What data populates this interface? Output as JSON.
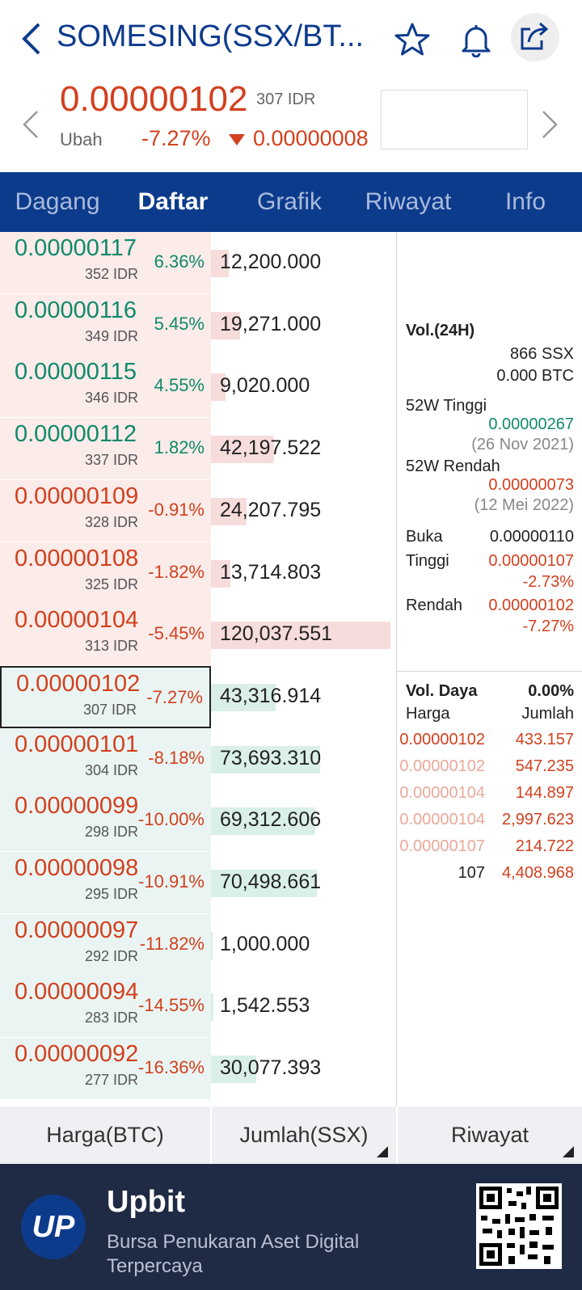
{
  "header": {
    "title": "SOMESING(SSX/BT...",
    "back_icon": "chevron-left-icon",
    "star_icon": "star-icon",
    "bell_icon": "bell-icon",
    "share_icon": "share-icon"
  },
  "price": {
    "value": "0.00000102",
    "idr": "307 IDR",
    "change_label": "Ubah",
    "change_pct": "-7.27%",
    "change_abs": "0.00000008"
  },
  "tabs": [
    {
      "label": "Dagang"
    },
    {
      "label": "Daftar"
    },
    {
      "label": "Grafik"
    },
    {
      "label": "Riwayat"
    },
    {
      "label": "Info"
    }
  ],
  "asks": [
    {
      "price": "0.00000117",
      "idr": "352 IDR",
      "pct": "6.36%",
      "qty": "12,200.000",
      "fill": 0.1,
      "dir": "up"
    },
    {
      "price": "0.00000116",
      "idr": "349 IDR",
      "pct": "5.45%",
      "qty": "19,271.000",
      "fill": 0.16,
      "dir": "up"
    },
    {
      "price": "0.00000115",
      "idr": "346 IDR",
      "pct": "4.55%",
      "qty": "9,020.000",
      "fill": 0.08,
      "dir": "up"
    },
    {
      "price": "0.00000112",
      "idr": "337 IDR",
      "pct": "1.82%",
      "qty": "42,197.522",
      "fill": 0.35,
      "dir": "up"
    },
    {
      "price": "0.00000109",
      "idr": "328 IDR",
      "pct": "-0.91%",
      "qty": "24,207.795",
      "fill": 0.2,
      "dir": "dn"
    },
    {
      "price": "0.00000108",
      "idr": "325 IDR",
      "pct": "-1.82%",
      "qty": "13,714.803",
      "fill": 0.11,
      "dir": "dn"
    },
    {
      "price": "0.00000104",
      "idr": "313 IDR",
      "pct": "-5.45%",
      "qty": "120,037.551",
      "fill": 1.0,
      "dir": "dn"
    }
  ],
  "bids": [
    {
      "price": "0.00000102",
      "idr": "307 IDR",
      "pct": "-7.27%",
      "qty": "43,316.914",
      "fill": 0.36,
      "dir": "dn"
    },
    {
      "price": "0.00000101",
      "idr": "304 IDR",
      "pct": "-8.18%",
      "qty": "73,693.310",
      "fill": 0.61,
      "dir": "dn"
    },
    {
      "price": "0.00000099",
      "idr": "298 IDR",
      "pct": "-10.00%",
      "qty": "69,312.606",
      "fill": 0.58,
      "dir": "dn"
    },
    {
      "price": "0.00000098",
      "idr": "295 IDR",
      "pct": "-10.91%",
      "qty": "70,498.661",
      "fill": 0.59,
      "dir": "dn"
    },
    {
      "price": "0.00000097",
      "idr": "292 IDR",
      "pct": "-11.82%",
      "qty": "1,000.000",
      "fill": 0.01,
      "dir": "dn"
    },
    {
      "price": "0.00000094",
      "idr": "283 IDR",
      "pct": "-14.55%",
      "qty": "1,542.553",
      "fill": 0.015,
      "dir": "dn"
    },
    {
      "price": "0.00000092",
      "idr": "277 IDR",
      "pct": "-16.36%",
      "qty": "30,077.393",
      "fill": 0.25,
      "dir": "dn"
    }
  ],
  "info": {
    "vol_label": "Vol.(24H)",
    "vol_ssx": "866 SSX",
    "vol_btc": "0.000 BTC",
    "high52_label": "52W Tinggi",
    "high52_val": "0.00000267",
    "high52_date": "(26 Nov 2021)",
    "low52_label": "52W Rendah",
    "low52_val": "0.00000073",
    "low52_date": "(12 Mei 2022)",
    "open_label": "Buka",
    "open_val": "0.00000110",
    "high_label": "Tinggi",
    "high_val": "0.00000107",
    "high_pct": "-2.73%",
    "low_label": "Rendah",
    "low_val": "0.00000102",
    "low_pct": "-7.27%"
  },
  "trades": {
    "title": "Vol. Daya",
    "strength": "0.00%",
    "col_price": "Harga",
    "col_qty": "Jumlah",
    "rows": [
      {
        "price": "0.00000102",
        "qty": "433.157"
      },
      {
        "price": "0.00000102",
        "qty": "547.235"
      },
      {
        "price": "0.00000104",
        "qty": "144.897"
      },
      {
        "price": "0.00000104",
        "qty": "2,997.623"
      },
      {
        "price": "0.00000107",
        "qty": "214.722"
      },
      {
        "price": "107",
        "qty": "4,408.968"
      }
    ]
  },
  "bottom": {
    "col1": "Harga(BTC)",
    "col2": "Jumlah(SSX)",
    "col3": "Riwayat"
  },
  "banner": {
    "logo": "UP",
    "title": "Upbit",
    "subtitle": "Bursa Penukaran Aset Digital Terpercaya",
    "qr_icon": "qr-code-icon"
  },
  "colors": {
    "brand": "#0d3b8c",
    "down": "#d2401e",
    "up": "#0f8a6a"
  }
}
